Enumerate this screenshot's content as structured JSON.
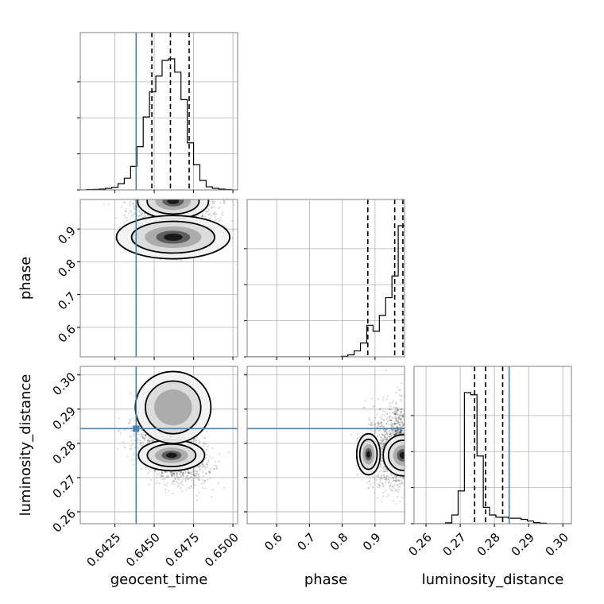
{
  "chart_data": {
    "type": "corner",
    "parameters": [
      "geocent_time",
      "phase",
      "luminosity_distance"
    ],
    "axis_labels": {
      "x": [
        "geocent_time",
        "phase",
        "luminosity_distance"
      ],
      "y": [
        "phase",
        "luminosity_distance"
      ]
    },
    "ranges": {
      "geocent_time": [
        0.6403,
        0.6503
      ],
      "phase": [
        0.51,
        0.99
      ],
      "luminosity_distance": [
        0.2565,
        0.3025
      ]
    },
    "ticks": {
      "geocent_time": [
        0.6425,
        0.645,
        0.6475,
        0.65
      ],
      "geocent_time_labels": [
        "0.6425",
        "0.6450",
        "0.6475",
        "0.6500"
      ],
      "phase": [
        0.6,
        0.7,
        0.8,
        0.9
      ],
      "phase_labels": [
        "0.6",
        "0.7",
        "0.8",
        "0.9"
      ],
      "luminosity_distance": [
        0.26,
        0.27,
        0.28,
        0.29,
        0.3
      ],
      "luminosity_distance_labels": [
        "0.26",
        "0.27",
        "0.28",
        "0.29",
        "0.30"
      ]
    },
    "truths": {
      "geocent_time": 0.64385,
      "luminosity_distance": 0.2843
    },
    "truth_color": "#4682b4",
    "quantiles": {
      "geocent_time": [
        0.64485,
        0.64603,
        0.64722
      ],
      "phase": [
        0.878,
        0.96,
        0.985
      ],
      "luminosity_distance": [
        0.2742,
        0.2774,
        0.2824
      ]
    },
    "histograms": {
      "geocent_time": {
        "bin_start": 0.6403,
        "bin_width": 0.0004,
        "counts": [
          0,
          0.4,
          0.6,
          1,
          2,
          3.5,
          8,
          15,
          30,
          55,
          93,
          125,
          145,
          165,
          167,
          150,
          115,
          60,
          32,
          12,
          4,
          2,
          1,
          0.5,
          0
        ]
      },
      "phase": {
        "bin_start": 0.51,
        "bin_width": 0.0192,
        "counts": [
          0,
          0,
          0,
          0,
          0,
          0,
          0,
          0,
          0,
          0,
          0,
          0,
          0,
          0,
          0,
          0.5,
          2,
          6,
          14,
          32,
          26,
          42,
          60,
          82,
          133
        ]
      },
      "luminosity_distance": {
        "bin_start": 0.2565,
        "bin_width": 0.00184,
        "counts": [
          0,
          0,
          0,
          0,
          0,
          0.8,
          8,
          30,
          120,
          118,
          62,
          15,
          8,
          6,
          6,
          5,
          5,
          4,
          2.5,
          1,
          0.5,
          0,
          0,
          0,
          0
        ]
      }
    },
    "densities": {
      "geocent_time__phase": {
        "mean": [
          0.6462,
          0.935
        ],
        "sd": [
          0.0013,
          0.05
        ],
        "corr": 0.0,
        "n": 1400,
        "floor": 0.84,
        "blobs": [
          {
            "center": [
              0.6462,
              0.985
            ],
            "rx": 0.00075,
            "ry": 0.018,
            "weight": 1.0
          },
          {
            "center": [
              0.6462,
              0.875
            ],
            "rx": 0.0012,
            "ry": 0.022,
            "weight": 0.55
          }
        ]
      },
      "geocent_time__luminosity_distance": {
        "mean": [
          0.6461,
          0.2775
        ],
        "sd": [
          0.0011,
          0.0045
        ],
        "corr": -0.35,
        "n": 1700,
        "floor": null,
        "blobs": [
          {
            "center": [
              0.6461,
              0.2765
            ],
            "rx": 0.0007,
            "ry": 0.0015,
            "weight": 1.0
          },
          {
            "center": [
              0.6462,
              0.2905
            ],
            "rx": 0.0008,
            "ry": 0.0035,
            "weight": 0.35
          }
        ]
      },
      "phase__luminosity_distance": {
        "mean": [
          0.96,
          0.279
        ],
        "sd": [
          0.045,
          0.006
        ],
        "corr": 0.1,
        "n": 1300,
        "floor": 0.84,
        "blobs": [
          {
            "center": [
              0.985,
              0.2765
            ],
            "rx": 0.02,
            "ry": 0.002,
            "weight": 1.0
          },
          {
            "center": [
              0.88,
              0.2768
            ],
            "rx": 0.012,
            "ry": 0.002,
            "weight": 0.6
          }
        ]
      }
    },
    "grid": true
  }
}
